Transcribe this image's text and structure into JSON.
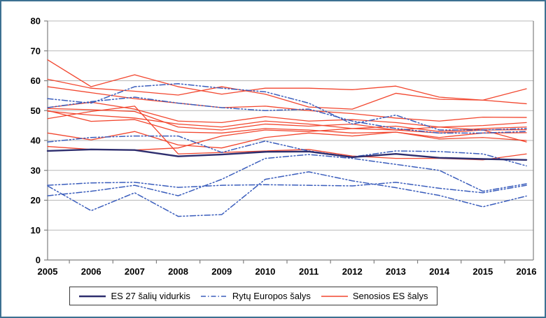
{
  "colors": {
    "frame_border": "#3c7092",
    "grid": "#b8b8b8",
    "axis": "#808080",
    "background": "#ffffff",
    "legend_border": "#3a3a3a",
    "es27_line": "#2e2e6e",
    "east_line": "#3a5dbc",
    "old_line": "#f2462e"
  },
  "chart_data": {
    "type": "line",
    "title": "",
    "xlabel": "",
    "ylabel": "",
    "x_labels": [
      "2005",
      "2006",
      "2007",
      "2008",
      "2009",
      "2010",
      "2011",
      "2012",
      "2013",
      "2014",
      "2015",
      "2016"
    ],
    "ylim": [
      0,
      80
    ],
    "ytick_step": 10,
    "ytick_labels": [
      "0",
      "10",
      "20",
      "30",
      "40",
      "50",
      "60",
      "70",
      "80"
    ],
    "grid": "horizontal-only",
    "legend": {
      "position": "bottom-center",
      "items": [
        {
          "label": "ES 27 šalių vidurkis",
          "group": "es27"
        },
        {
          "label": "Rytų Europos šalys",
          "group": "east"
        },
        {
          "label": "Senosios ES šalys",
          "group": "old"
        }
      ]
    },
    "groups": [
      {
        "id": "old",
        "name": "Senosios ES šalys",
        "color": "#f2462e",
        "line_style": "solid",
        "line_width": 1.3,
        "series": [
          [
            67,
            58,
            62,
            58,
            55.5,
            57.5,
            57.5,
            57,
            58.2,
            54.5,
            53.5,
            57.3
          ],
          [
            60.5,
            57.5,
            56.5,
            55.2,
            58,
            55.5,
            51.2,
            50.5,
            55.8,
            53.8,
            53.5,
            52.3
          ],
          [
            58,
            56,
            54,
            52.5,
            51,
            51.5,
            50,
            49,
            47.5,
            46.5,
            47.8,
            47.7
          ],
          [
            51,
            52.8,
            50.5,
            46.5,
            46,
            48,
            46.5,
            47,
            46,
            44.5,
            45,
            46
          ],
          [
            50.7,
            50.3,
            49.7,
            44.5,
            43.5,
            45.5,
            44.8,
            45.5,
            43.5,
            44.5,
            43.5,
            43.6
          ],
          [
            50,
            46.4,
            47,
            42.8,
            42.5,
            44,
            43.5,
            42.5,
            42.8,
            41,
            42.5,
            42.6
          ],
          [
            49.8,
            48.5,
            47.5,
            45.5,
            44.5,
            46.5,
            45.5,
            44,
            44.8,
            43,
            44,
            44.5
          ],
          [
            47.3,
            49.7,
            51.5,
            35.5,
            36,
            36.5,
            37,
            34.8,
            34,
            34,
            33.5,
            35.5
          ],
          [
            42.5,
            40.2,
            43,
            38.5,
            37.5,
            41,
            42.5,
            41.5,
            42.8,
            40.5,
            41,
            40
          ],
          [
            38,
            37,
            36.8,
            37.5,
            41.5,
            43.5,
            43,
            44,
            43.5,
            42.5,
            43.5,
            39.5
          ]
        ]
      },
      {
        "id": "east",
        "name": "Rytų Europos šalys",
        "color": "#3a5dbc",
        "line_style": "dash-dot-dot",
        "line_width": 1.5,
        "series": [
          [
            54,
            52.5,
            58,
            59,
            57.5,
            56.3,
            52.5,
            45.5,
            48.5,
            43.5,
            43.5,
            44
          ],
          [
            51,
            53,
            54.5,
            52.5,
            51,
            50,
            50.5,
            46.5,
            44,
            42.5,
            42.5,
            43
          ],
          [
            39.5,
            41,
            41.5,
            41.5,
            36,
            39.8,
            36.5,
            34.5,
            36.5,
            36.3,
            35.5,
            31.5
          ],
          [
            21.5,
            23,
            25,
            21.5,
            27,
            34,
            35.3,
            34,
            32,
            30,
            23,
            25.5
          ],
          [
            25,
            25.8,
            26,
            24.3,
            25,
            25.2,
            25,
            24.8,
            26,
            24,
            22.5,
            25
          ],
          [
            24.8,
            16.5,
            22.5,
            14.6,
            15.2,
            27,
            29.5,
            26.5,
            24.2,
            21.6,
            17.8,
            21.4
          ]
        ]
      },
      {
        "id": "es27",
        "name": "ES 27 šalių vidurkis",
        "color": "#2e2e6e",
        "line_style": "solid",
        "line_width": 2.4,
        "series": [
          [
            36.5,
            37,
            36.8,
            34.7,
            35.3,
            36.2,
            36.3,
            34.4,
            35.5,
            34.2,
            33.8,
            33.5
          ]
        ]
      }
    ]
  }
}
